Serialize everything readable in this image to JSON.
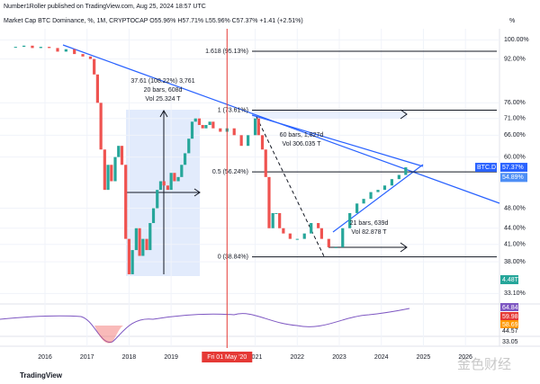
{
  "header": {
    "publisher": "Number1Roller published on TradingView.com, Aug 25, 2024 18:57 UTC",
    "symbol": "Market Cap BTC Dominance, %, 1M, CRYPTOCAP O55.96% H57.71% L55.96% C57.37% +1.41 (+2.51%)",
    "unit": "%"
  },
  "chart_data": {
    "type": "candlestick",
    "series_label": "BTC.D",
    "log_scale": true,
    "up_color": "#26a69a",
    "down_color": "#ef5350",
    "x": [
      2015.3,
      2015.5,
      2015.7,
      2015.9,
      2016.1,
      2016.3,
      2016.5,
      2016.7,
      2016.9,
      2017.08,
      2017.17,
      2017.25,
      2017.33,
      2017.42,
      2017.5,
      2017.58,
      2017.67,
      2017.75,
      2017.83,
      2017.92,
      2018.0,
      2018.08,
      2018.17,
      2018.25,
      2018.33,
      2018.42,
      2018.5,
      2018.58,
      2018.67,
      2018.75,
      2018.83,
      2018.92,
      2019.0,
      2019.08,
      2019.17,
      2019.25,
      2019.33,
      2019.42,
      2019.5,
      2019.58,
      2019.67,
      2019.75,
      2019.83,
      2019.92,
      2020.0,
      2020.17,
      2020.33,
      2020.5,
      2020.67,
      2020.83,
      2021.0,
      2021.08,
      2021.17,
      2021.25,
      2021.33,
      2021.42,
      2021.5,
      2021.58,
      2021.67,
      2021.83,
      2022.0,
      2022.17,
      2022.33,
      2022.5,
      2022.58,
      2022.75,
      2022.92,
      2023.08,
      2023.25,
      2023.42,
      2023.58,
      2023.75,
      2023.92,
      2024.08,
      2024.25,
      2024.42,
      2024.58
    ],
    "values": [
      97,
      97.5,
      96.5,
      97,
      96.5,
      95,
      96,
      94,
      93,
      92,
      86,
      76,
      62,
      52,
      58,
      54,
      60,
      63,
      58,
      42,
      36,
      40,
      44,
      39,
      42,
      40,
      45,
      48,
      52,
      54,
      53,
      52,
      56,
      54,
      55,
      58,
      61,
      65,
      70,
      71,
      69,
      68,
      69,
      70,
      68,
      67,
      68,
      66,
      63,
      66,
      71,
      66,
      62,
      55,
      44,
      47,
      47,
      44,
      43,
      42,
      42,
      43,
      45,
      44,
      42,
      40.5,
      40.5,
      44,
      47,
      49,
      50,
      51.5,
      52,
      53,
      54.5,
      55.5,
      57.37
    ],
    "xlim": [
      2014.93,
      2026.81
    ],
    "ylim": [
      32,
      110
    ],
    "xticks": [
      2016,
      2017,
      2018,
      2019,
      2021,
      2022,
      2023,
      2024,
      2025,
      2026
    ],
    "yticks": [
      {
        "value": 100,
        "label": "100.00%"
      },
      {
        "value": 92,
        "label": "92.00%"
      },
      {
        "value": 76,
        "label": "76.00%"
      },
      {
        "value": 71,
        "label": "71.00%"
      },
      {
        "value": 66,
        "label": "66.00%"
      },
      {
        "value": 60,
        "label": "60.00%"
      },
      {
        "value": 48,
        "label": "48.00%"
      },
      {
        "value": 44,
        "label": "44.00%"
      },
      {
        "value": 41,
        "label": "41.00%"
      },
      {
        "value": 38,
        "label": "38.00%"
      },
      {
        "value": 33.1,
        "label": "33.10%"
      }
    ],
    "fib_levels": [
      {
        "value": 95.13,
        "label": "1.618 (95.13%)"
      },
      {
        "value": 73.61,
        "label": "1 (73.61%)"
      },
      {
        "value": 56.24,
        "label": "0.5 (56.24%)"
      },
      {
        "value": 38.84,
        "label": "0 (38.84%)"
      }
    ],
    "price_tags": [
      {
        "value": 57.37,
        "label": "57.37%"
      },
      {
        "value": 54.89,
        "label": "54.89%"
      }
    ],
    "crosshair": {
      "value": 2020.33,
      "label": "Fri 01 May '20"
    },
    "measurements": [
      [
        "37.61 (108.22%) 3,761",
        "20 bars, 608d",
        "Vol 25.324 T"
      ],
      [
        "60 bars, 1,827d",
        "Vol 306.035 T"
      ],
      [
        "21 bars, 639d",
        "Vol 82.878 T"
      ]
    ],
    "volume_label": "4.48T",
    "rsi_labels": [
      64.84,
      59.98,
      58.69,
      44.57,
      33.05
    ]
  },
  "footer": {
    "brand": "TradingView",
    "watermark": "金色财经"
  }
}
